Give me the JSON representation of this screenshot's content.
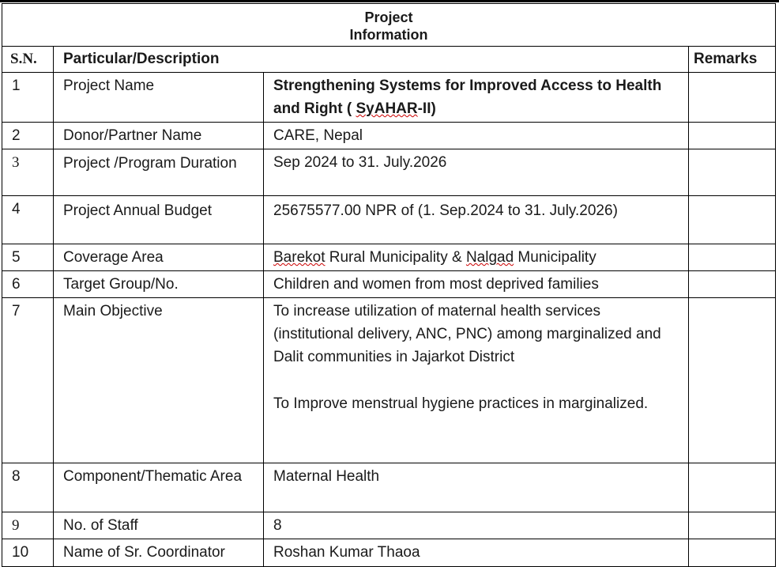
{
  "title": "Project\nInformation",
  "title_line1": "Project",
  "title_line2": "Information",
  "headers": {
    "sn": "S.N.",
    "particular": "Particular/Description",
    "remarks": "Remarks"
  },
  "rows": [
    {
      "sn": "1",
      "label": "Project Name",
      "value_part1": "Strengthening Systems for Improved Access to Health and Right ( ",
      "value_part2": "SyAHAR",
      "value_part3": "-II)",
      "remarks": ""
    },
    {
      "sn": "2",
      "label": "Donor/Partner  Name",
      "value": "CARE, Nepal",
      "remarks": ""
    },
    {
      "sn": "3",
      "label": "Project /Program Duration",
      "value": "Sep 2024 to 31. July.2026",
      "remarks": ""
    },
    {
      "sn": "4",
      "label": "Project Annual Budget",
      "value": "25675577.00 NPR of  (1. Sep.2024  to  31. July.2026)",
      "remarks": ""
    },
    {
      "sn": "5",
      "label": "Coverage Area",
      "value_part1": "Barekot",
      "value_part2": " Rural Municipality & ",
      "value_part3": "Nalgad",
      "value_part4": " Municipality",
      "remarks": ""
    },
    {
      "sn": "6",
      "label": "Target Group/No.",
      "value": "Children and women from most deprived families",
      "remarks": ""
    },
    {
      "sn": "7",
      "label": "Main Objective",
      "value_para1": "To increase utilization of maternal health services (institutional delivery, ANC, PNC) among marginalized and Dalit communities in Jajarkot District",
      "value_para2": "To Improve menstrual hygiene practices in marginalized.",
      "remarks": ""
    },
    {
      "sn": "8",
      "label": "Component/Thematic Area",
      "value": "Maternal  Health",
      "remarks": ""
    },
    {
      "sn": "9",
      "label": "No. of Staff",
      "value": "8",
      "remarks": ""
    },
    {
      "sn": "10",
      "label": "Name of Sr. Coordinator",
      "value": "Roshan Kumar Thaoa",
      "remarks": ""
    }
  ]
}
